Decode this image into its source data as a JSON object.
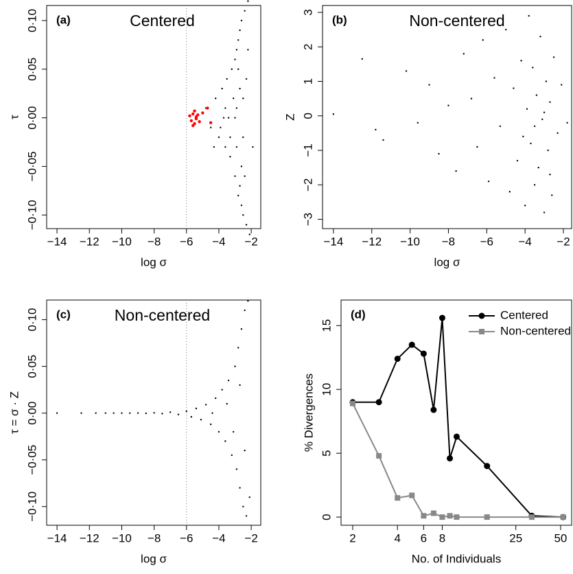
{
  "chart_data": [
    {
      "type": "scatter",
      "panel": "(a)",
      "title": "Centered",
      "x_label": "log σ",
      "y_label": "τ",
      "xlim": [
        -14.64,
        -1.41
      ],
      "ylim": [
        -0.114,
        0.1155
      ],
      "xticks": [
        {
          "value": -14,
          "label": "−14"
        },
        {
          "value": -12,
          "label": "−12"
        },
        {
          "value": -10,
          "label": "−10"
        },
        {
          "value": -8,
          "label": "−8"
        },
        {
          "value": -6,
          "label": "−6"
        },
        {
          "value": -4,
          "label": "−4"
        },
        {
          "value": -2,
          "label": "−2"
        }
      ],
      "yticks": [
        {
          "value": -0.1,
          "label": "−0·10"
        },
        {
          "value": -0.05,
          "label": "−0·05"
        },
        {
          "value": 0,
          "label": "0·00"
        },
        {
          "value": 0.05,
          "label": "0·05"
        },
        {
          "value": 0.1,
          "label": "0·10"
        }
      ],
      "reference_x": -6,
      "series": [
        {
          "color": "#000000",
          "x": [
            -4.8,
            -4.5,
            -4.2,
            -4.0,
            -3.8,
            -3.6,
            -3.5,
            -3.3,
            -3.2,
            -3.0,
            -3.0,
            -2.9,
            -2.8,
            -2.8,
            -2.7,
            -2.6,
            -2.6,
            -2.5,
            -2.4,
            -2.3,
            -2.2,
            -2.1,
            -3.4,
            -3.1,
            -2.9,
            -2.7,
            -2.5,
            -2.3,
            -3.7,
            -3.9,
            -2.6,
            -2.8,
            -3.0,
            -2.4,
            -2.2,
            -3.3,
            -2.9,
            -2.5,
            -2.7,
            -1.9,
            -4.3,
            -3.6
          ],
          "y": [
            0.01,
            -0.01,
            0.02,
            -0.02,
            0.03,
            -0.03,
            0.04,
            -0.04,
            0.05,
            -0.06,
            0.06,
            0.07,
            -0.08,
            0.08,
            0.09,
            -0.09,
            0.1,
            -0.1,
            0.11,
            -0.11,
            0.12,
            -0.12,
            0.0,
            0.02,
            -0.03,
            0.03,
            -0.02,
            0.04,
            0.0,
            -0.01,
            -0.05,
            0.05,
            0.0,
            -0.06,
            0.07,
            -0.02,
            0.01,
            0.02,
            -0.07,
            -0.03,
            -0.03,
            0.01
          ]
        },
        {
          "color": "#ff0000",
          "x": [
            -5.8,
            -5.7,
            -5.6,
            -5.5,
            -5.4,
            -5.3,
            -5.2,
            -5.6,
            -5.5,
            -5.4,
            -5.0,
            -4.7,
            -4.5
          ],
          "y": [
            0.002,
            -0.003,
            0.004,
            -0.006,
            0.001,
            0.003,
            -0.004,
            -0.008,
            0.007,
            -0.001,
            0.005,
            0.01,
            -0.005
          ]
        }
      ]
    },
    {
      "type": "scatter",
      "panel": "(b)",
      "title": "Non-centered",
      "x_label": "log σ",
      "y_label": "Z",
      "xlim": [
        -14.57,
        -1.57
      ],
      "ylim": [
        -3.27,
        3.2
      ],
      "xticks": [
        {
          "value": -14,
          "label": "−14"
        },
        {
          "value": -12,
          "label": "−12"
        },
        {
          "value": -10,
          "label": "−10"
        },
        {
          "value": -8,
          "label": "−8"
        },
        {
          "value": -6,
          "label": "−6"
        },
        {
          "value": -4,
          "label": "−4"
        },
        {
          "value": -2,
          "label": "−2"
        }
      ],
      "yticks": [
        {
          "value": -3,
          "label": "−3"
        },
        {
          "value": -2,
          "label": "−2"
        },
        {
          "value": -1,
          "label": "−1"
        },
        0,
        1,
        2,
        3
      ],
      "series": [
        {
          "color": "#000000",
          "x": [
            -14,
            -12.5,
            -11.8,
            -11.4,
            -10.2,
            -9.6,
            -9.0,
            -8.5,
            -8.0,
            -7.6,
            -7.2,
            -6.8,
            -6.5,
            -6.2,
            -5.9,
            -5.6,
            -5.3,
            -5.0,
            -4.8,
            -4.6,
            -4.4,
            -4.2,
            -4.0,
            -3.9,
            -3.8,
            -3.7,
            -3.6,
            -3.5,
            -3.4,
            -3.3,
            -3.2,
            -3.1,
            -3.0,
            -2.9,
            -2.8,
            -2.7,
            -2.6,
            -2.5,
            -2.3,
            -2.1,
            -1.8,
            -3.5,
            -3.0,
            -4.1,
            -2.7
          ],
          "y": [
            0.05,
            1.65,
            -0.4,
            -0.7,
            1.3,
            -0.2,
            0.9,
            -1.1,
            0.3,
            -1.6,
            1.8,
            0.5,
            -0.9,
            2.2,
            -1.9,
            1.1,
            -0.3,
            2.5,
            -2.2,
            0.8,
            -1.3,
            1.6,
            -2.6,
            0.2,
            2.9,
            -0.8,
            1.4,
            -2.0,
            0.6,
            -1.5,
            2.3,
            -0.1,
            -2.8,
            1.0,
            -1.0,
            0.4,
            -2.3,
            1.7,
            -0.5,
            0.9,
            -0.2,
            -0.3,
            0.1,
            -0.6,
            -1.7
          ]
        }
      ]
    },
    {
      "type": "scatter",
      "panel": "(c)",
      "title": "Non-centered",
      "x_label": "log σ",
      "y_label": "τ = σ · Z",
      "xlim": [
        -14.64,
        -1.41
      ],
      "ylim": [
        -0.12,
        0.121
      ],
      "xticks": [
        {
          "value": -14,
          "label": "−14"
        },
        {
          "value": -12,
          "label": "−12"
        },
        {
          "value": -10,
          "label": "−10"
        },
        {
          "value": -8,
          "label": "−8"
        },
        {
          "value": -6,
          "label": "−6"
        },
        {
          "value": -4,
          "label": "−4"
        },
        {
          "value": -2,
          "label": "−2"
        }
      ],
      "yticks": [
        {
          "value": -0.1,
          "label": "−0·10"
        },
        {
          "value": -0.05,
          "label": "−0·05"
        },
        {
          "value": 0,
          "label": "0·00"
        },
        {
          "value": 0.05,
          "label": "0·05"
        },
        {
          "value": 0.1,
          "label": "0·10"
        }
      ],
      "reference_x": -6,
      "series": [
        {
          "color": "#000000",
          "x": [
            -14,
            -12.5,
            -11.6,
            -11,
            -10.5,
            -10,
            -9.5,
            -9,
            -8.5,
            -8,
            -7.5,
            -7,
            -6.5,
            -6,
            -5.7,
            -5.4,
            -5.1,
            -4.8,
            -4.5,
            -4.2,
            -4.0,
            -3.8,
            -3.6,
            -3.4,
            -3.2,
            -3.0,
            -2.9,
            -2.8,
            -2.7,
            -2.6,
            -2.5,
            -2.4,
            -2.3,
            -2.2,
            -2.1,
            -3.5,
            -3.1,
            -4.4,
            -2.7,
            -2.4
          ],
          "y": [
            0,
            0,
            0,
            0,
            0,
            0,
            0,
            0.0001,
            -0.0002,
            0.0003,
            -0.0005,
            0.001,
            -0.0015,
            0.002,
            -0.004,
            0.005,
            -0.007,
            0.009,
            -0.012,
            0.016,
            -0.02,
            0.025,
            -0.03,
            0.035,
            -0.045,
            0.05,
            -0.06,
            0.07,
            -0.08,
            0.09,
            -0.1,
            0.11,
            -0.11,
            0.12,
            -0.09,
            0.01,
            -0.02,
            0.0,
            0.03,
            -0.04
          ]
        }
      ]
    },
    {
      "type": "line",
      "panel": "(d)",
      "x_label": "No. of Individuals",
      "y_label": "% Divergences",
      "x_scale": "log",
      "xlim": [
        1.67,
        59.3
      ],
      "ylim": [
        -0.64,
        17.0
      ],
      "xticks": [
        2,
        4,
        6,
        8,
        25,
        50
      ],
      "yticks": [
        0,
        5,
        10,
        15
      ],
      "legend": "top-right",
      "x": [
        2,
        3,
        4,
        5,
        6,
        7,
        8,
        9,
        10,
        16,
        32,
        52
      ],
      "series": [
        {
          "name": "Centered",
          "color": "#000000",
          "marker": "circle",
          "values": [
            9.0,
            9.0,
            12.4,
            13.5,
            12.8,
            8.4,
            15.6,
            4.6,
            6.3,
            4.0,
            0.1,
            0.0
          ]
        },
        {
          "name": "Non-centered",
          "color": "#888888",
          "marker": "square",
          "values": [
            8.9,
            4.8,
            1.5,
            1.7,
            0.1,
            0.3,
            0.0,
            0.1,
            0.0,
            0.0,
            0.0,
            0.0
          ]
        }
      ]
    }
  ]
}
